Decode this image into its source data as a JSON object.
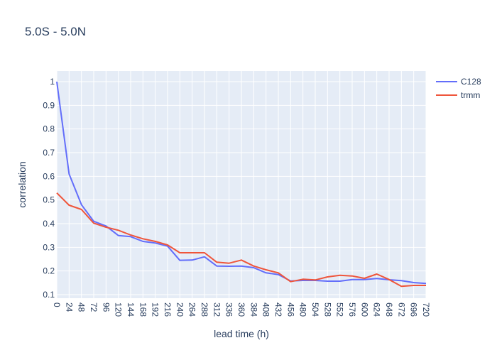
{
  "chart_data": {
    "type": "line",
    "title": "5.0S - 5.0N",
    "xlabel": "lead time (h)",
    "ylabel": "correlation",
    "xlim": [
      0,
      720
    ],
    "ylim": [
      0.1,
      1
    ],
    "x_ticks": [
      0,
      24,
      48,
      72,
      96,
      120,
      144,
      168,
      192,
      216,
      240,
      264,
      288,
      312,
      336,
      360,
      384,
      408,
      432,
      456,
      480,
      504,
      528,
      552,
      576,
      600,
      624,
      648,
      672,
      696,
      720
    ],
    "y_ticks": [
      0.1,
      0.2,
      0.3,
      0.4,
      0.5,
      0.6,
      0.7,
      0.8,
      0.9,
      1
    ],
    "y_tick_labels": [
      "0.1",
      "0.2",
      "0.3",
      "0.4",
      "0.5",
      "0.6",
      "0.7",
      "0.8",
      "0.9",
      "1"
    ],
    "grid": true,
    "legend_position": "top-right",
    "x": [
      0,
      24,
      48,
      72,
      96,
      120,
      144,
      168,
      192,
      216,
      240,
      264,
      288,
      312,
      336,
      360,
      384,
      408,
      432,
      456,
      480,
      504,
      528,
      552,
      576,
      600,
      624,
      648,
      672,
      696,
      720
    ],
    "series": [
      {
        "name": "C128",
        "color": "#636efa",
        "values": [
          1.0,
          0.61,
          0.48,
          0.41,
          0.39,
          0.35,
          0.345,
          0.325,
          0.318,
          0.305,
          0.245,
          0.246,
          0.26,
          0.221,
          0.22,
          0.221,
          0.214,
          0.192,
          0.185,
          0.158,
          0.16,
          0.16,
          0.157,
          0.157,
          0.164,
          0.164,
          0.168,
          0.163,
          0.159,
          0.151,
          0.147
        ]
      },
      {
        "name": "trmm",
        "color": "#ef553b",
        "values": [
          0.53,
          0.478,
          0.46,
          0.402,
          0.385,
          0.372,
          0.352,
          0.336,
          0.325,
          0.31,
          0.277,
          0.277,
          0.277,
          0.237,
          0.233,
          0.246,
          0.221,
          0.205,
          0.192,
          0.155,
          0.165,
          0.162,
          0.175,
          0.182,
          0.179,
          0.169,
          0.187,
          0.164,
          0.135,
          0.139,
          0.139
        ]
      }
    ]
  }
}
